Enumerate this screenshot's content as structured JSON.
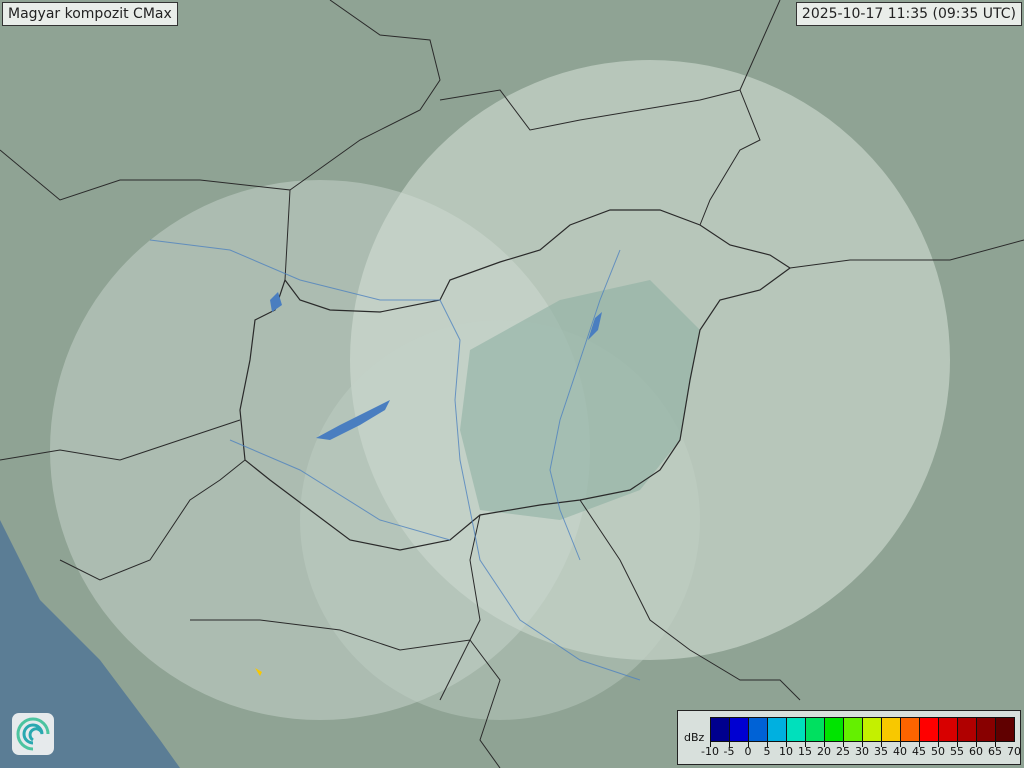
{
  "title": "Magyar kompozit  CMax",
  "timestamp": "2025-10-17 11:35 (09:35 UTC)",
  "legend": {
    "unit": "dBz",
    "labels": [
      "-10",
      "-5",
      "0",
      "5",
      "10",
      "15",
      "20",
      "25",
      "30",
      "35",
      "40",
      "45",
      "50",
      "55",
      "60",
      "65",
      "70"
    ],
    "colors": [
      "#00008e",
      "#0000d2",
      "#0062d6",
      "#00b0e0",
      "#00e0bc",
      "#00e060",
      "#00e400",
      "#64f000",
      "#c4f000",
      "#f8c800",
      "#fc6400",
      "#ff0000",
      "#d80000",
      "#b00000",
      "#880000",
      "#600000"
    ]
  },
  "logo_icon": "swirl-logo-icon",
  "colors": {
    "terrain": "#8fa394",
    "radar_coverage": "#c8d6cc",
    "sea": "#5b7d95",
    "border": "#2a2a2a",
    "water": "#4a7ec0"
  }
}
